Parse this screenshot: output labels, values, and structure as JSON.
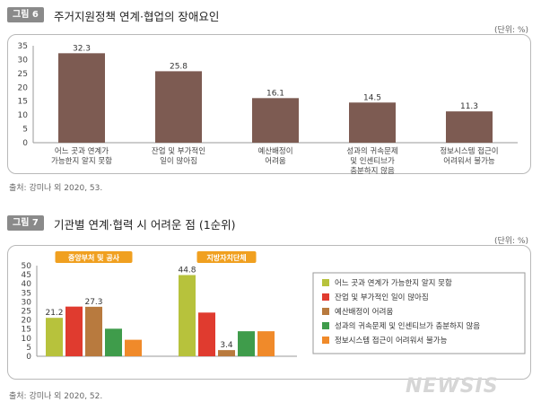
{
  "figure6": {
    "tag": "그림 6",
    "title": "주거지원정책 연계·협업의 장애요인",
    "unit": "(단위: %)",
    "source": "출처: 강미나 외 2020, 53."
  },
  "figure7": {
    "tag": "그림 7",
    "title": "기관별 연계·협력 시 어려운 점 (1순위)",
    "unit": "(단위: %)",
    "source": "출처: 강미나 외 2020, 52."
  },
  "watermark": "NEWSIS",
  "colors": {
    "fig6_bar": "#7d5b52",
    "s1": "#b7c23c",
    "s2": "#e03b2f",
    "s3": "#b87a3e",
    "s4": "#3f9c4b",
    "s5": "#f08a2a",
    "group_label_bg": "#f0a020"
  },
  "chart_data": [
    {
      "type": "bar",
      "categories": [
        [
          "어느 곳과 연계가",
          "가능한지 알지 못함"
        ],
        [
          "잔업 및 부가적인",
          "일이 많아짐"
        ],
        [
          "예산배정이",
          "어려움"
        ],
        [
          "성과의 귀속문제",
          "및 인센티브가",
          "충분하지 않음"
        ],
        [
          "정보시스템 접근이",
          "어려워서 불가능"
        ]
      ],
      "values": [
        32.3,
        25.8,
        16.1,
        14.5,
        11.3
      ],
      "value_labels": [
        "32.3",
        "25.8",
        "16.1",
        "14.5",
        "11.3"
      ],
      "yticks": [
        "0",
        "5",
        "10",
        "15",
        "20",
        "25",
        "30",
        "35"
      ],
      "ylim": [
        0,
        35
      ],
      "grid": false
    },
    {
      "type": "bar",
      "groups": [
        "중앙부처 및 공사",
        "지방자치단체"
      ],
      "series": [
        {
          "name": "어느 곳과 연계가 가능한지 알지 못함",
          "values": [
            21.2,
            44.8
          ]
        },
        {
          "name": "잔업 및 부가적인 일이 많아짐",
          "values": [
            27.4,
            24.1
          ]
        },
        {
          "name": "예산배정이 어려움",
          "values": [
            27.3,
            3.4
          ]
        },
        {
          "name": "성과의 귀속문제 및 인센티브가 충분하지 않음",
          "values": [
            15.2,
            13.8
          ]
        },
        {
          "name": "정보시스템 접근이 어려워서 불가능",
          "values": [
            9.1,
            13.8
          ]
        }
      ],
      "value_labels": [
        [
          "21.2",
          "",
          "27.3",
          "",
          ""
        ],
        [
          "44.8",
          "",
          "3.4",
          "",
          ""
        ]
      ],
      "yticks": [
        "0",
        "5",
        "10",
        "15",
        "20",
        "25",
        "30",
        "35",
        "40",
        "45",
        "50"
      ],
      "ylim": [
        0,
        50
      ],
      "legend": "right",
      "grid": false
    }
  ]
}
